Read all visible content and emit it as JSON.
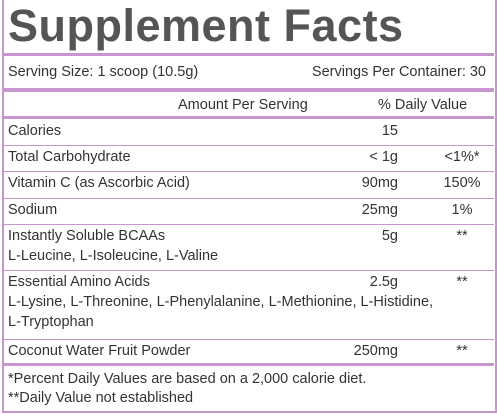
{
  "header": {
    "title": "Supplement Facts",
    "serving_size": "Serving Size: 1 scoop (10.5g)",
    "servings_per_container": "Servings Per Container: 30"
  },
  "table": {
    "columns": [
      "Amount Per Serving",
      "% Daily Value"
    ],
    "rows": [
      {
        "name": "Calories",
        "amount": "15"
      },
      {
        "name": "Total Carbohydrate",
        "amount": "< 1g",
        "daily_value": "<1%*"
      },
      {
        "name": "Vitamin C (as Ascorbic Acid)",
        "amount": "90mg",
        "daily_value": "150%"
      },
      {
        "name": "Sodium",
        "amount": "25mg",
        "daily_value": "1%"
      },
      {
        "name": "Instantly Soluble BCAAs",
        "amount": "5g",
        "daily_value": "**",
        "detail": [
          "L-Leucine, L-Isoleucine, L-Valine"
        ]
      },
      {
        "name": "Essential Amino Acids",
        "amount": "2.5g",
        "daily_value": "**",
        "detail": [
          "L-Lysine, L-Threonine, L-Phenylalanine, L-Methionine, L-Histidine,",
          "L-Tryptophan"
        ]
      },
      {
        "name": "Coconut Water Fruit Powder",
        "amount": "250mg",
        "daily_value": "**"
      }
    ]
  },
  "footnotes": [
    "*Percent Daily Values are based on a 2,000 calorie diet.",
    "**Daily Value not established"
  ]
}
